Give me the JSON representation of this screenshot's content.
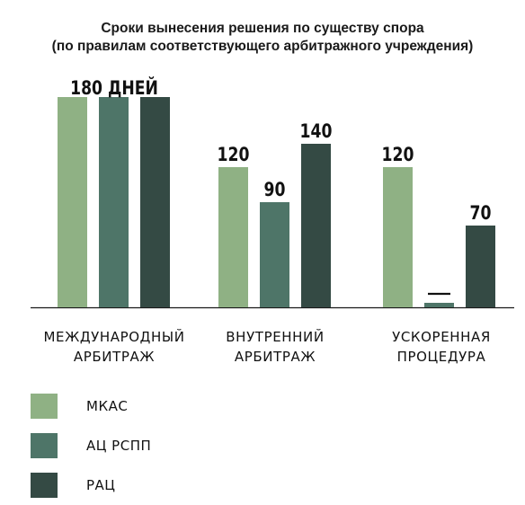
{
  "chart_data": {
    "type": "bar",
    "title": "Сроки вынесения решения по существу спора",
    "subtitle": "(по правилам соответствующего арбитражного учреждения)",
    "categories": [
      "МЕЖДУНАРОДНЫЙ\nАРБИТРАЖ",
      "ВНУТРЕННИЙ\nАРБИТРАЖ",
      "УСКОРЕННАЯ\nПРОЦЕДУРА"
    ],
    "series": [
      {
        "name": "МКАС",
        "color": "#8fb184",
        "values": [
          180,
          120,
          120
        ]
      },
      {
        "name": "АЦ РСПП",
        "color": "#4e7568",
        "values": [
          180,
          90,
          null
        ]
      },
      {
        "name": "РАЦ",
        "color": "#344a44",
        "values": [
          180,
          140,
          70
        ]
      }
    ],
    "group_label": {
      "category_index": 0,
      "text": "180 ДНЕЙ"
    },
    "data_labels": [
      [
        "",
        "",
        ""
      ],
      [
        "120",
        "90",
        "140"
      ],
      [
        "120",
        "—",
        "70"
      ]
    ],
    "ylim": [
      0,
      180
    ],
    "xlabel": "",
    "ylabel": "",
    "grid": false,
    "legend_position": "bottom-left"
  }
}
